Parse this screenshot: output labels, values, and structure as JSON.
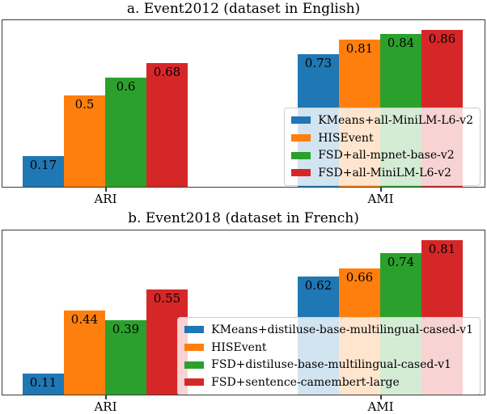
{
  "chart_data": [
    {
      "type": "bar",
      "title": "a. Event2012 (dataset in English)",
      "categories": [
        "ARI",
        "AMI"
      ],
      "series": [
        {
          "name": "KMeans+all-MiniLM-L6-v2",
          "color": "#1f77b4",
          "values": [
            0.17,
            0.73
          ],
          "labels": [
            "0.17",
            "0.73"
          ]
        },
        {
          "name": "HISEvent",
          "color": "#ff7f0e",
          "values": [
            0.5,
            0.81
          ],
          "labels": [
            "0.5",
            "0.81"
          ]
        },
        {
          "name": "FSD+all-mpnet-base-v2",
          "color": "#2ca02c",
          "values": [
            0.6,
            0.84
          ],
          "labels": [
            "0.6",
            "0.84"
          ]
        },
        {
          "name": "FSD+all-MiniLM-L6-v2",
          "color": "#d62728",
          "values": [
            0.68,
            0.86
          ],
          "labels": [
            "0.68",
            "0.86"
          ]
        }
      ],
      "xlabel": "",
      "ylabel": "",
      "ylim": [
        0,
        0.91
      ],
      "grid": false,
      "legend_position": "lower-right-inside",
      "bar_value_labels": "inside-top"
    },
    {
      "type": "bar",
      "title": "b. Event2018 (dataset in French)",
      "categories": [
        "ARI",
        "AMI"
      ],
      "series": [
        {
          "name": "KMeans+distiluse-base-multilingual-cased-v1",
          "color": "#1f77b4",
          "values": [
            0.11,
            0.62
          ],
          "labels": [
            "0.11",
            "0.62"
          ]
        },
        {
          "name": "HISEvent",
          "color": "#ff7f0e",
          "values": [
            0.44,
            0.66
          ],
          "labels": [
            "0.44",
            "0.66"
          ]
        },
        {
          "name": "FSD+distiluse-base-multilingual-cased-v1",
          "color": "#2ca02c",
          "values": [
            0.39,
            0.74
          ],
          "labels": [
            "0.39",
            "0.74"
          ]
        },
        {
          "name": "FSD+sentence-camembert-large",
          "color": "#d62728",
          "values": [
            0.55,
            0.81
          ],
          "labels": [
            "0.55",
            "0.81"
          ]
        }
      ],
      "xlabel": "",
      "ylabel": "",
      "ylim": [
        0,
        0.855
      ],
      "grid": false,
      "legend_position": "lower-right-inside",
      "bar_value_labels": "inside-top"
    }
  ],
  "colors": {
    "series_blue": "#1f77b4",
    "series_orange": "#ff7f0e",
    "series_green": "#2ca02c",
    "series_red": "#d62728",
    "spine": "#3c3c3c",
    "legend_border": "#cccccc",
    "text": "#000000",
    "background": "#ffffff"
  }
}
